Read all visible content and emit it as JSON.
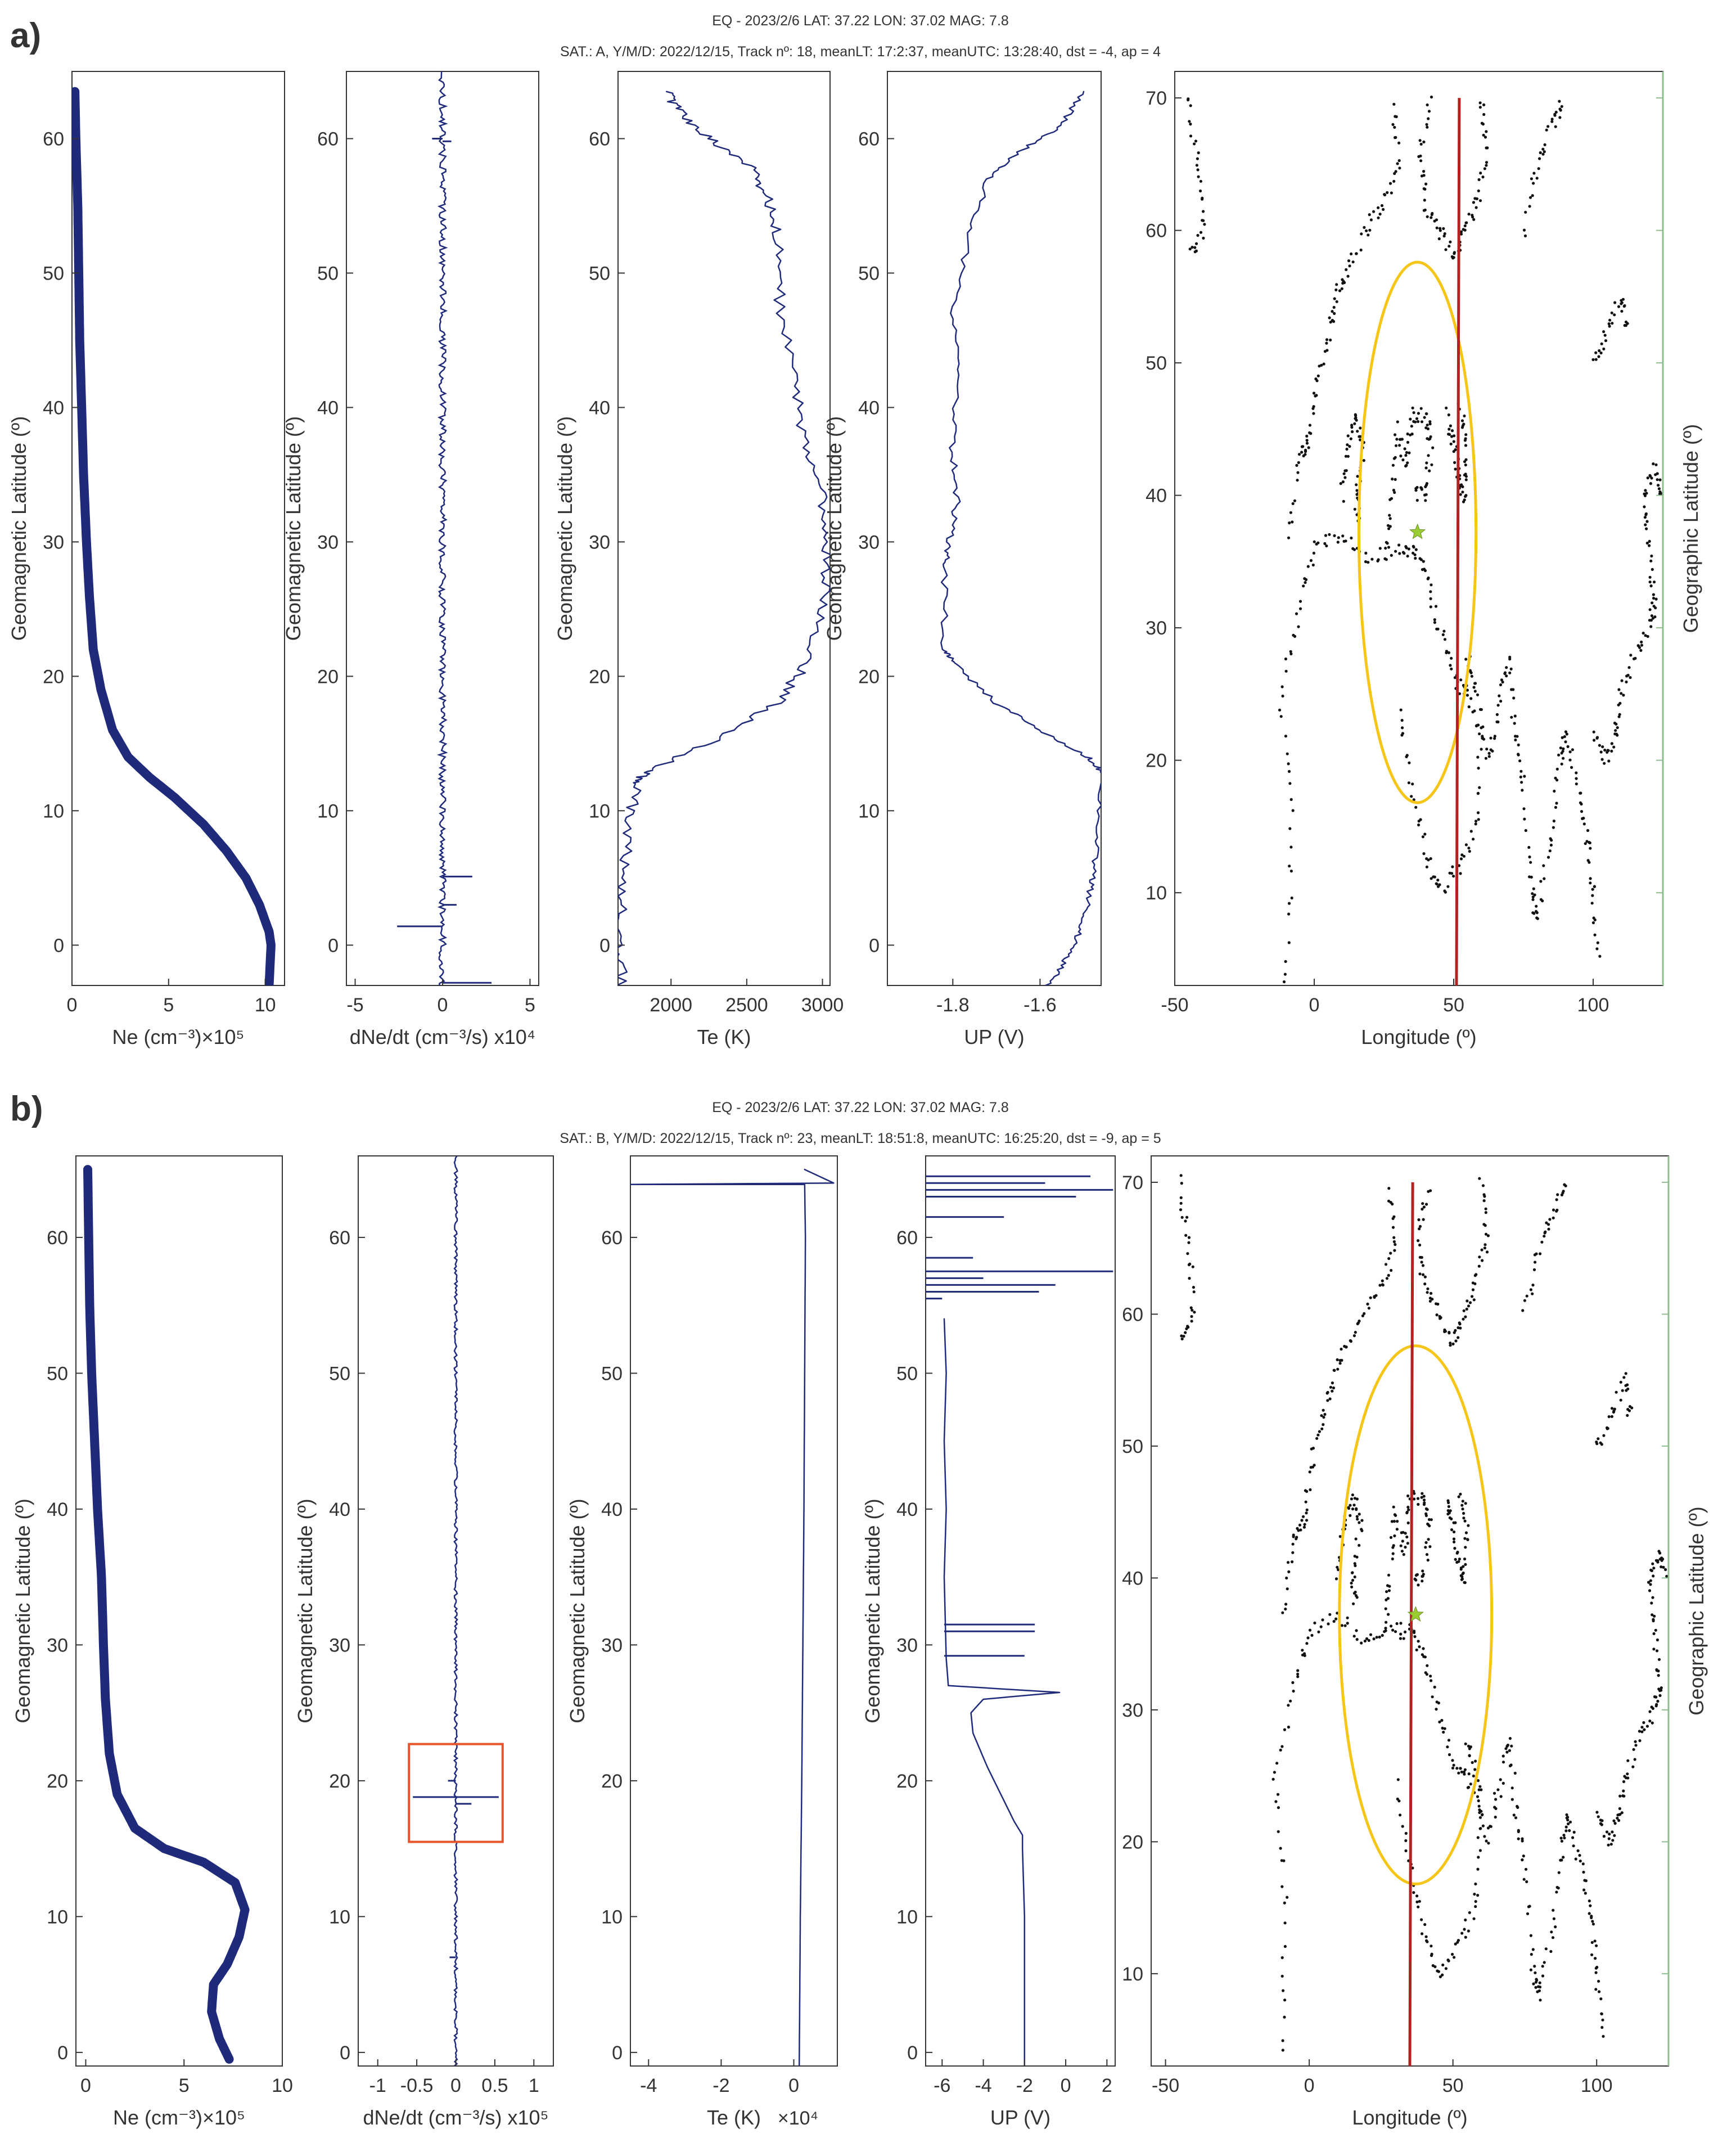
{
  "figure": {
    "panel_a_label": "a)",
    "panel_b_label": "b)",
    "panel_a_header": [
      "EQ - 2023/2/6 LAT: 37.22 LON: 37.02 MAG: 7.8",
      "SAT.: A, Y/M/D: 2022/12/15, Track nº: 18, meanLT: 17:2:37, meanUTC: 13:28:40, dst = -4, ap = 4"
    ],
    "panel_b_header": [
      "EQ - 2023/2/6 LAT: 37.22 LON: 37.02 MAG: 7.8",
      "SAT.: B, Y/M/D: 2022/12/15, Track nº: 23, meanLT: 18:51:8, meanUTC: 16:25:20, dst = -9, ap = 5"
    ],
    "colors": {
      "series": "#1f2a7a",
      "track": "#b22222",
      "ellipse": "#f5c518",
      "star": "#9acd32",
      "box": "#e8552b",
      "coast": "#111111",
      "map_right_axis": "#8fbc8f"
    }
  },
  "chart_data": [
    {
      "panel": "a",
      "type": "line",
      "title": "",
      "xlabel": "Ne (cm⁻³)×10⁵",
      "ylabel": "Geomagnetic Latitude (º)",
      "xlim": [
        0,
        11
      ],
      "ylim": [
        -3,
        65
      ],
      "xticks": [
        "0",
        "5",
        "10"
      ],
      "yticks": [
        "0",
        "10",
        "20",
        "30",
        "40",
        "50",
        "60"
      ],
      "series": [
        {
          "name": "Ne",
          "x": [
            10.2,
            10.3,
            10.2,
            9.7,
            9.0,
            8.0,
            6.8,
            5.3,
            4.0,
            2.9,
            2.1,
            1.5,
            1.1,
            0.9,
            0.75,
            0.6,
            0.5,
            0.4,
            0.35,
            0.3,
            0.2,
            0.15
          ],
          "y": [
            -3,
            0,
            1,
            3,
            5,
            7,
            9,
            11,
            12.5,
            14,
            16,
            19,
            22,
            26,
            30,
            35,
            40,
            45,
            50,
            55,
            60,
            63.5
          ]
        }
      ]
    },
    {
      "panel": "a",
      "type": "line",
      "title": "",
      "xlabel": "dNe/dt (cm⁻³/s) x10⁴",
      "ylabel": "Geomagnetic Latitude (º)",
      "xlim": [
        -5.5,
        5.5
      ],
      "ylim": [
        -3,
        65
      ],
      "xticks": [
        "-5",
        "0",
        "5"
      ],
      "yticks": [
        "0",
        "10",
        "20",
        "30",
        "40",
        "50",
        "60"
      ],
      "series": [
        {
          "name": "dNe/dt",
          "spikes": [
            {
              "y": 1.4,
              "x": -2.6
            },
            {
              "y": -2.8,
              "x": 2.8
            },
            {
              "y": 5.1,
              "x": 1.7
            },
            {
              "y": 60.0,
              "x": -0.6
            },
            {
              "y": 59.8,
              "x": 0.5
            },
            {
              "y": 3.0,
              "x": 0.8
            }
          ],
          "noise_amplitude": 0.2
        }
      ]
    },
    {
      "panel": "a",
      "type": "line",
      "title": "",
      "xlabel": "Te (K)",
      "ylabel": "Geomagnetic Latitude (º)",
      "xlim": [
        1650,
        3050
      ],
      "ylim": [
        -3,
        65
      ],
      "xticks": [
        "2000",
        "2500",
        "3000"
      ],
      "yticks": [
        "0",
        "10",
        "20",
        "30",
        "40",
        "50",
        "60"
      ],
      "series": [
        {
          "name": "Te",
          "x": [
            1680,
            1650,
            1690,
            1720,
            1770,
            1850,
            2250,
            2700,
            2900,
            3000,
            3030,
            3000,
            2900,
            2800,
            2720,
            2700,
            2620,
            2520,
            2250,
            2050,
            1970
          ],
          "y": [
            -3,
            1,
            5,
            9,
            12,
            13,
            15,
            18,
            21,
            25,
            29,
            33,
            37,
            42,
            48,
            53,
            56,
            58,
            60,
            62,
            63.5
          ],
          "noise_amplitude": 40
        }
      ]
    },
    {
      "panel": "a",
      "type": "line",
      "title": "",
      "xlabel": "UP (V)",
      "ylabel": "Geomagnetic Latitude (º)",
      "xlim": [
        -1.95,
        -1.46
      ],
      "ylim": [
        -3,
        65
      ],
      "xticks": [
        "-1.8",
        "-1.6"
      ],
      "yticks": [
        "0",
        "10",
        "20",
        "30",
        "40",
        "50",
        "60"
      ],
      "series": [
        {
          "name": "UP",
          "x": [
            -1.58,
            -1.54,
            -1.51,
            -1.49,
            -1.48,
            -1.47,
            -1.46,
            -1.49,
            -1.6,
            -1.7,
            -1.8,
            -1.82,
            -1.82,
            -1.81,
            -1.79,
            -1.8,
            -1.79,
            -1.8,
            -1.76,
            -1.72,
            -1.65,
            -1.55,
            -1.5
          ],
          "y": [
            -3,
            -1,
            1,
            3,
            5,
            8,
            12.8,
            14,
            16,
            18,
            21,
            22,
            28,
            30,
            33,
            37,
            42,
            47,
            53,
            57,
            59,
            61,
            63.5
          ],
          "noise_amplitude": 0.008
        }
      ]
    },
    {
      "panel": "a",
      "type": "map",
      "title": "",
      "xlabel": "Longitude (º)",
      "ylabel": "Geographic Latitude (º)",
      "xlim": [
        -50,
        125
      ],
      "ylim": [
        3,
        72
      ],
      "xticks": [
        "-50",
        "0",
        "50",
        "100"
      ],
      "yticks": [
        "10",
        "20",
        "30",
        "40",
        "50",
        "60",
        "70"
      ],
      "track": {
        "lon": [
          51,
          52
        ],
        "lat": [
          3,
          70
        ]
      },
      "epicenter": {
        "lon": 37.02,
        "lat": 37.22
      },
      "ellipse": {
        "center_lon": 37,
        "center_lat": 37.2,
        "radius_lon": 21,
        "radius_lat": 20.4
      }
    },
    {
      "panel": "b",
      "type": "line",
      "title": "",
      "xlabel": "Ne (cm⁻³)×10⁵",
      "ylabel": "Geomagnetic Latitude (º)",
      "xlim": [
        -0.5,
        10
      ],
      "ylim": [
        -1,
        66
      ],
      "xticks": [
        "0",
        "5",
        "10"
      ],
      "yticks": [
        "0",
        "10",
        "20",
        "30",
        "40",
        "50",
        "60"
      ],
      "series": [
        {
          "name": "Ne",
          "x": [
            7.3,
            6.8,
            6.4,
            6.5,
            7.2,
            7.8,
            8.1,
            7.6,
            6.0,
            4.0,
            2.5,
            1.6,
            1.2,
            1.0,
            0.9,
            0.8,
            0.6,
            0.45,
            0.3,
            0.2,
            0.1
          ],
          "y": [
            -0.5,
            1,
            3,
            5,
            6.5,
            8.5,
            10.5,
            12.5,
            14,
            15,
            16.5,
            19,
            22,
            26,
            30,
            35,
            40,
            45,
            50,
            55,
            65
          ]
        }
      ]
    },
    {
      "panel": "b",
      "type": "line",
      "title": "",
      "xlabel": "dNe/dt (cm⁻³/s) x10⁵",
      "ylabel": "Geomagnetic Latitude (º)",
      "xlim": [
        -1.25,
        1.25
      ],
      "ylim": [
        -1,
        66
      ],
      "xticks": [
        "-1",
        "-0.5",
        "0",
        "0.5",
        "1"
      ],
      "yticks": [
        "0",
        "10",
        "20",
        "30",
        "40",
        "50",
        "60"
      ],
      "series": [
        {
          "name": "dNe/dt",
          "spikes": [
            {
              "y": 18.8,
              "x": -0.55
            },
            {
              "y": 18.8,
              "x": 0.55
            },
            {
              "y": 18.3,
              "x": 0.2
            },
            {
              "y": 20.0,
              "x": -0.1
            },
            {
              "y": 7.0,
              "x": -0.08
            }
          ],
          "noise_amplitude": 0.02
        }
      ],
      "highlight_box": {
        "x": [
          -0.6,
          0.6
        ],
        "y": [
          15.5,
          22.7
        ]
      }
    },
    {
      "panel": "b",
      "type": "line",
      "title": "",
      "xlabel": "Te (K)",
      "x_multiplier": "×10⁴",
      "ylabel": "Geomagnetic Latitude (º)",
      "xlim": [
        -4.5,
        1.2
      ],
      "ylim": [
        -1,
        66
      ],
      "xticks": [
        "-4",
        "-2",
        "0"
      ],
      "yticks": [
        "0",
        "10",
        "20",
        "30",
        "40",
        "50",
        "60"
      ],
      "series": [
        {
          "name": "Te",
          "x": [
            0.15,
            0.18,
            0.22,
            0.25,
            0.28,
            0.3,
            0.32,
            0.3,
            -4.5,
            1.1,
            0.3
          ],
          "y": [
            -1,
            10,
            20,
            30,
            40,
            50,
            60,
            63.9,
            63.9,
            64.0,
            65
          ]
        }
      ]
    },
    {
      "panel": "b",
      "type": "line",
      "title": "",
      "xlabel": "UP (V)",
      "ylabel": "Geomagnetic Latitude (º)",
      "xlim": [
        -6.8,
        2.4
      ],
      "ylim": [
        -1,
        66
      ],
      "xticks": [
        "-6",
        "-4",
        "-2",
        "0",
        "2"
      ],
      "yticks": [
        "0",
        "10",
        "20",
        "30",
        "40",
        "50",
        "60"
      ],
      "series": [
        {
          "name": "UP",
          "x": [
            -2.0,
            -2.0,
            -2.1,
            -2.1,
            -2.5,
            -3.8,
            -4.5,
            -4.6,
            -4.0,
            -0.3,
            -5.7,
            -5.8,
            -5.9,
            -5.8,
            -5.9,
            -5.8,
            -5.9
          ],
          "y": [
            -1,
            10,
            15,
            16,
            17,
            21,
            23.5,
            25,
            26,
            26.5,
            27,
            29,
            35,
            40,
            45,
            50,
            54
          ],
          "spikes": [
            {
              "y": 29.2,
              "x": -2.0
            },
            {
              "y": 31.0,
              "x": -1.5
            },
            {
              "y": 31.5,
              "x": -1.5
            },
            {
              "y": 55.5,
              "x": -6.0
            },
            {
              "y": 56.0,
              "x": -1.3
            },
            {
              "y": 56.5,
              "x": -0.5
            },
            {
              "y": 57.0,
              "x": -4.0
            },
            {
              "y": 57.5,
              "x": 2.3
            },
            {
              "y": 58.5,
              "x": -4.5
            },
            {
              "y": 61.5,
              "x": -3.0
            },
            {
              "y": 63.0,
              "x": 0.5
            },
            {
              "y": 63.5,
              "x": 2.3
            },
            {
              "y": 64.0,
              "x": -1.0
            },
            {
              "y": 64.5,
              "x": 1.2
            }
          ]
        }
      ]
    },
    {
      "panel": "b",
      "type": "map",
      "title": "",
      "xlabel": "Longitude (º)",
      "ylabel": "Geographic Latitude (º)",
      "xlim": [
        -55,
        125
      ],
      "ylim": [
        3,
        72
      ],
      "xticks": [
        "-50",
        "0",
        "50",
        "100"
      ],
      "yticks": [
        "10",
        "20",
        "30",
        "40",
        "50",
        "60",
        "70"
      ],
      "track": {
        "lon": [
          35,
          36
        ],
        "lat": [
          3,
          70
        ]
      },
      "epicenter": {
        "lon": 37.02,
        "lat": 37.22
      },
      "ellipse": {
        "center_lon": 37,
        "center_lat": 37.2,
        "radius_lon": 26.5,
        "radius_lat": 20.4
      }
    }
  ]
}
